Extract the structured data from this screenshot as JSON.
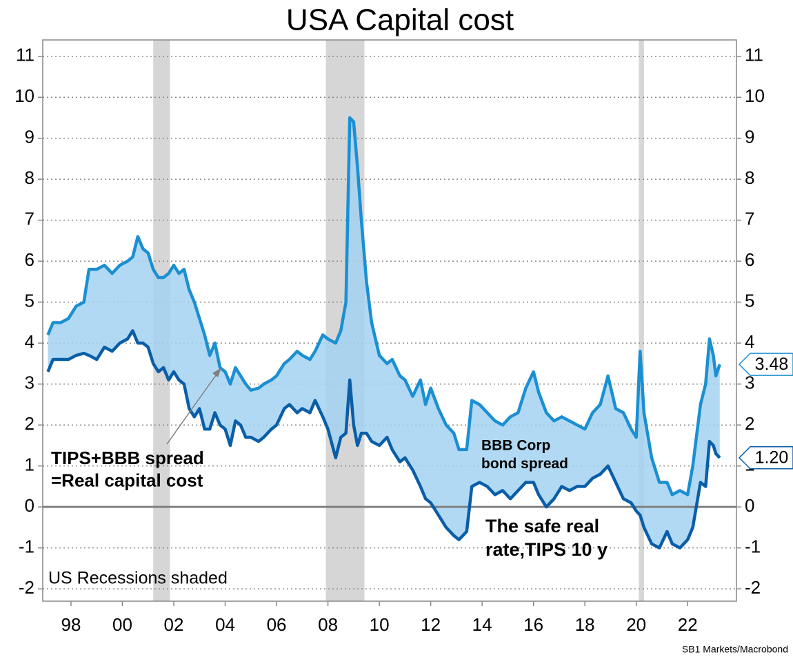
{
  "chart_data": {
    "type": "line",
    "title": "USA Capital cost",
    "source": "SB1 Markets/Macrobond",
    "x": [
      1997.1,
      1997.3,
      1997.6,
      1997.9,
      1998.2,
      1998.5,
      1998.7,
      1999.0,
      1999.3,
      1999.6,
      1999.9,
      2000.2,
      2000.4,
      2000.6,
      2000.8,
      2001.0,
      2001.2,
      2001.4,
      2001.6,
      2001.8,
      2002.0,
      2002.2,
      2002.4,
      2002.6,
      2002.8,
      2003.0,
      2003.2,
      2003.4,
      2003.6,
      2003.8,
      2004.0,
      2004.2,
      2004.4,
      2004.6,
      2004.8,
      2005.0,
      2005.3,
      2005.5,
      2005.8,
      2006.0,
      2006.3,
      2006.5,
      2006.8,
      2007.0,
      2007.3,
      2007.5,
      2007.8,
      2008.0,
      2008.3,
      2008.5,
      2008.7,
      2008.85,
      2009.0,
      2009.15,
      2009.3,
      2009.5,
      2009.7,
      2010.0,
      2010.3,
      2010.5,
      2010.8,
      2011.0,
      2011.3,
      2011.6,
      2011.8,
      2012.0,
      2012.3,
      2012.6,
      2012.9,
      2013.1,
      2013.4,
      2013.6,
      2013.9,
      2014.2,
      2014.5,
      2014.8,
      2015.1,
      2015.4,
      2015.7,
      2016.0,
      2016.2,
      2016.5,
      2016.8,
      2017.1,
      2017.4,
      2017.7,
      2018.0,
      2018.3,
      2018.6,
      2018.9,
      2019.2,
      2019.5,
      2019.8,
      2020.0,
      2020.15,
      2020.3,
      2020.6,
      2020.9,
      2021.2,
      2021.4,
      2021.7,
      2022.0,
      2022.2,
      2022.5,
      2022.7,
      2022.85,
      2023.0,
      2023.1,
      2023.25
    ],
    "series": [
      {
        "name": "TIPS+BBB spread",
        "color": "#1b8fd2",
        "last_label": "3.48",
        "values": [
          4.2,
          4.5,
          4.5,
          4.6,
          4.9,
          5.0,
          5.8,
          5.8,
          5.9,
          5.7,
          5.9,
          6.0,
          6.1,
          6.6,
          6.3,
          6.2,
          5.8,
          5.6,
          5.6,
          5.7,
          5.9,
          5.7,
          5.8,
          5.3,
          5.0,
          4.6,
          4.2,
          3.7,
          4.0,
          3.4,
          3.3,
          3.0,
          3.4,
          3.2,
          3.0,
          2.85,
          2.9,
          3.0,
          3.1,
          3.2,
          3.5,
          3.6,
          3.8,
          3.7,
          3.6,
          3.8,
          4.2,
          4.1,
          4.0,
          4.3,
          5.0,
          9.5,
          9.4,
          8.3,
          7.0,
          5.5,
          4.5,
          3.7,
          3.5,
          3.6,
          3.2,
          3.1,
          2.7,
          3.1,
          2.5,
          2.9,
          2.4,
          2.0,
          1.8,
          1.4,
          1.4,
          2.6,
          2.5,
          2.3,
          2.1,
          2.0,
          2.2,
          2.3,
          2.9,
          3.3,
          2.8,
          2.3,
          2.1,
          2.2,
          2.1,
          2.0,
          1.9,
          2.3,
          2.5,
          3.2,
          2.4,
          2.3,
          1.9,
          1.7,
          3.8,
          2.3,
          1.2,
          0.6,
          0.6,
          0.3,
          0.4,
          0.3,
          1.0,
          2.5,
          3.0,
          4.1,
          3.7,
          3.2,
          3.48
        ]
      },
      {
        "name": "TIPS 10 y",
        "color": "#0a5ea8",
        "last_label": "1.20",
        "values": [
          3.3,
          3.6,
          3.6,
          3.6,
          3.7,
          3.75,
          3.7,
          3.6,
          3.9,
          3.8,
          4.0,
          4.1,
          4.3,
          4.0,
          4.0,
          3.9,
          3.5,
          3.3,
          3.4,
          3.1,
          3.3,
          3.1,
          3.0,
          2.4,
          2.2,
          2.4,
          1.9,
          1.9,
          2.3,
          2.0,
          1.9,
          1.5,
          2.1,
          2.0,
          1.7,
          1.7,
          1.6,
          1.7,
          1.9,
          2.0,
          2.4,
          2.5,
          2.3,
          2.4,
          2.3,
          2.6,
          2.2,
          1.9,
          1.2,
          1.7,
          1.8,
          3.1,
          2.0,
          1.5,
          1.8,
          1.8,
          1.6,
          1.5,
          1.7,
          1.4,
          1.1,
          1.2,
          0.9,
          0.5,
          0.2,
          0.1,
          -0.2,
          -0.5,
          -0.7,
          -0.8,
          -0.6,
          0.5,
          0.6,
          0.5,
          0.3,
          0.4,
          0.2,
          0.4,
          0.6,
          0.6,
          0.3,
          0.0,
          0.2,
          0.5,
          0.4,
          0.5,
          0.5,
          0.7,
          0.8,
          1.0,
          0.6,
          0.2,
          0.1,
          -0.1,
          -0.2,
          -0.5,
          -0.9,
          -1.0,
          -0.6,
          -0.9,
          -1.0,
          -0.8,
          -0.5,
          0.6,
          0.5,
          1.6,
          1.5,
          1.3,
          1.2
        ]
      }
    ],
    "fill_color": "#a3d2f1",
    "recessions": [
      [
        2001.2,
        2001.85
      ],
      [
        2007.92,
        2009.42
      ],
      [
        2020.1,
        2020.3
      ]
    ],
    "recession_color": "#d6d6d6",
    "annotations": [
      {
        "lines": [
          "TIPS+BBB spread",
          "=Real capital cost"
        ],
        "color": "#1b8fd2"
      },
      {
        "lines": [
          "BBB Corp",
          "bond spread"
        ],
        "color": "#ffffff"
      },
      {
        "lines": [
          "The safe real",
          "rate,TIPS 10 y"
        ],
        "color": "#0a5ea8"
      },
      {
        "lines": [
          "US Recessions shaded"
        ],
        "color": "#000000"
      }
    ],
    "xlim": [
      1996.9,
      2023.9
    ],
    "xticks": [
      {
        "value": 1998,
        "label": "98"
      },
      {
        "value": 2000,
        "label": "00"
      },
      {
        "value": 2002,
        "label": "02"
      },
      {
        "value": 2004,
        "label": "04"
      },
      {
        "value": 2006,
        "label": "06"
      },
      {
        "value": 2008,
        "label": "08"
      },
      {
        "value": 2010,
        "label": "10"
      },
      {
        "value": 2012,
        "label": "12"
      },
      {
        "value": 2014,
        "label": "14"
      },
      {
        "value": 2016,
        "label": "16"
      },
      {
        "value": 2018,
        "label": "18"
      },
      {
        "value": 2020,
        "label": "20"
      },
      {
        "value": 2022,
        "label": "22"
      }
    ],
    "ylim": [
      -2.3,
      11.4
    ],
    "yticks": [
      -2,
      -1,
      0,
      1,
      2,
      3,
      4,
      5,
      6,
      7,
      8,
      9,
      10,
      11
    ],
    "grid": true
  }
}
